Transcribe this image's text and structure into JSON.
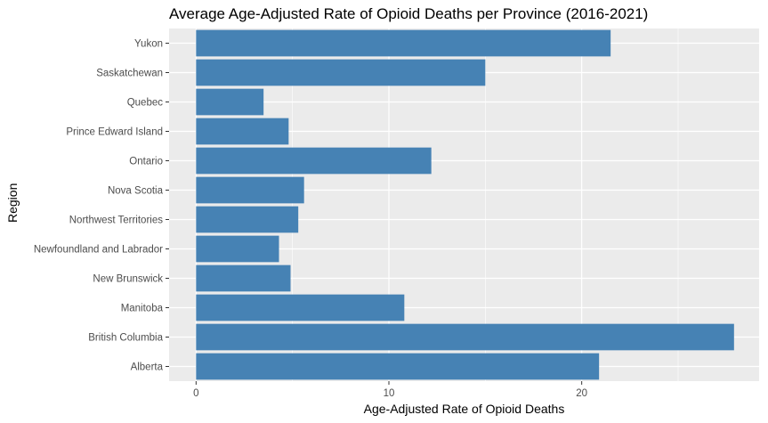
{
  "chart_data": {
    "type": "bar",
    "orientation": "horizontal",
    "title": "Average Age-Adjusted Rate of Opioid Deaths per Province (2016-2021)",
    "xlabel": "Age-Adjusted Rate of Opioid Deaths",
    "ylabel": "Region",
    "categories": [
      "Alberta",
      "British Columbia",
      "Manitoba",
      "New Brunswick",
      "Newfoundland and Labrador",
      "Northwest Territories",
      "Nova Scotia",
      "Ontario",
      "Prince Edward Island",
      "Quebec",
      "Saskatchewan",
      "Yukon"
    ],
    "values": [
      20.9,
      27.9,
      10.8,
      4.9,
      4.3,
      5.3,
      5.6,
      12.2,
      4.8,
      3.5,
      15.0,
      21.5
    ],
    "x_ticks": [
      0,
      10,
      20
    ],
    "xlim": [
      -1.4,
      29.2
    ],
    "grid": true,
    "bar_color": "#4682B4",
    "panel_color": "#EBEBEB",
    "grid_color": "#FFFFFF"
  }
}
